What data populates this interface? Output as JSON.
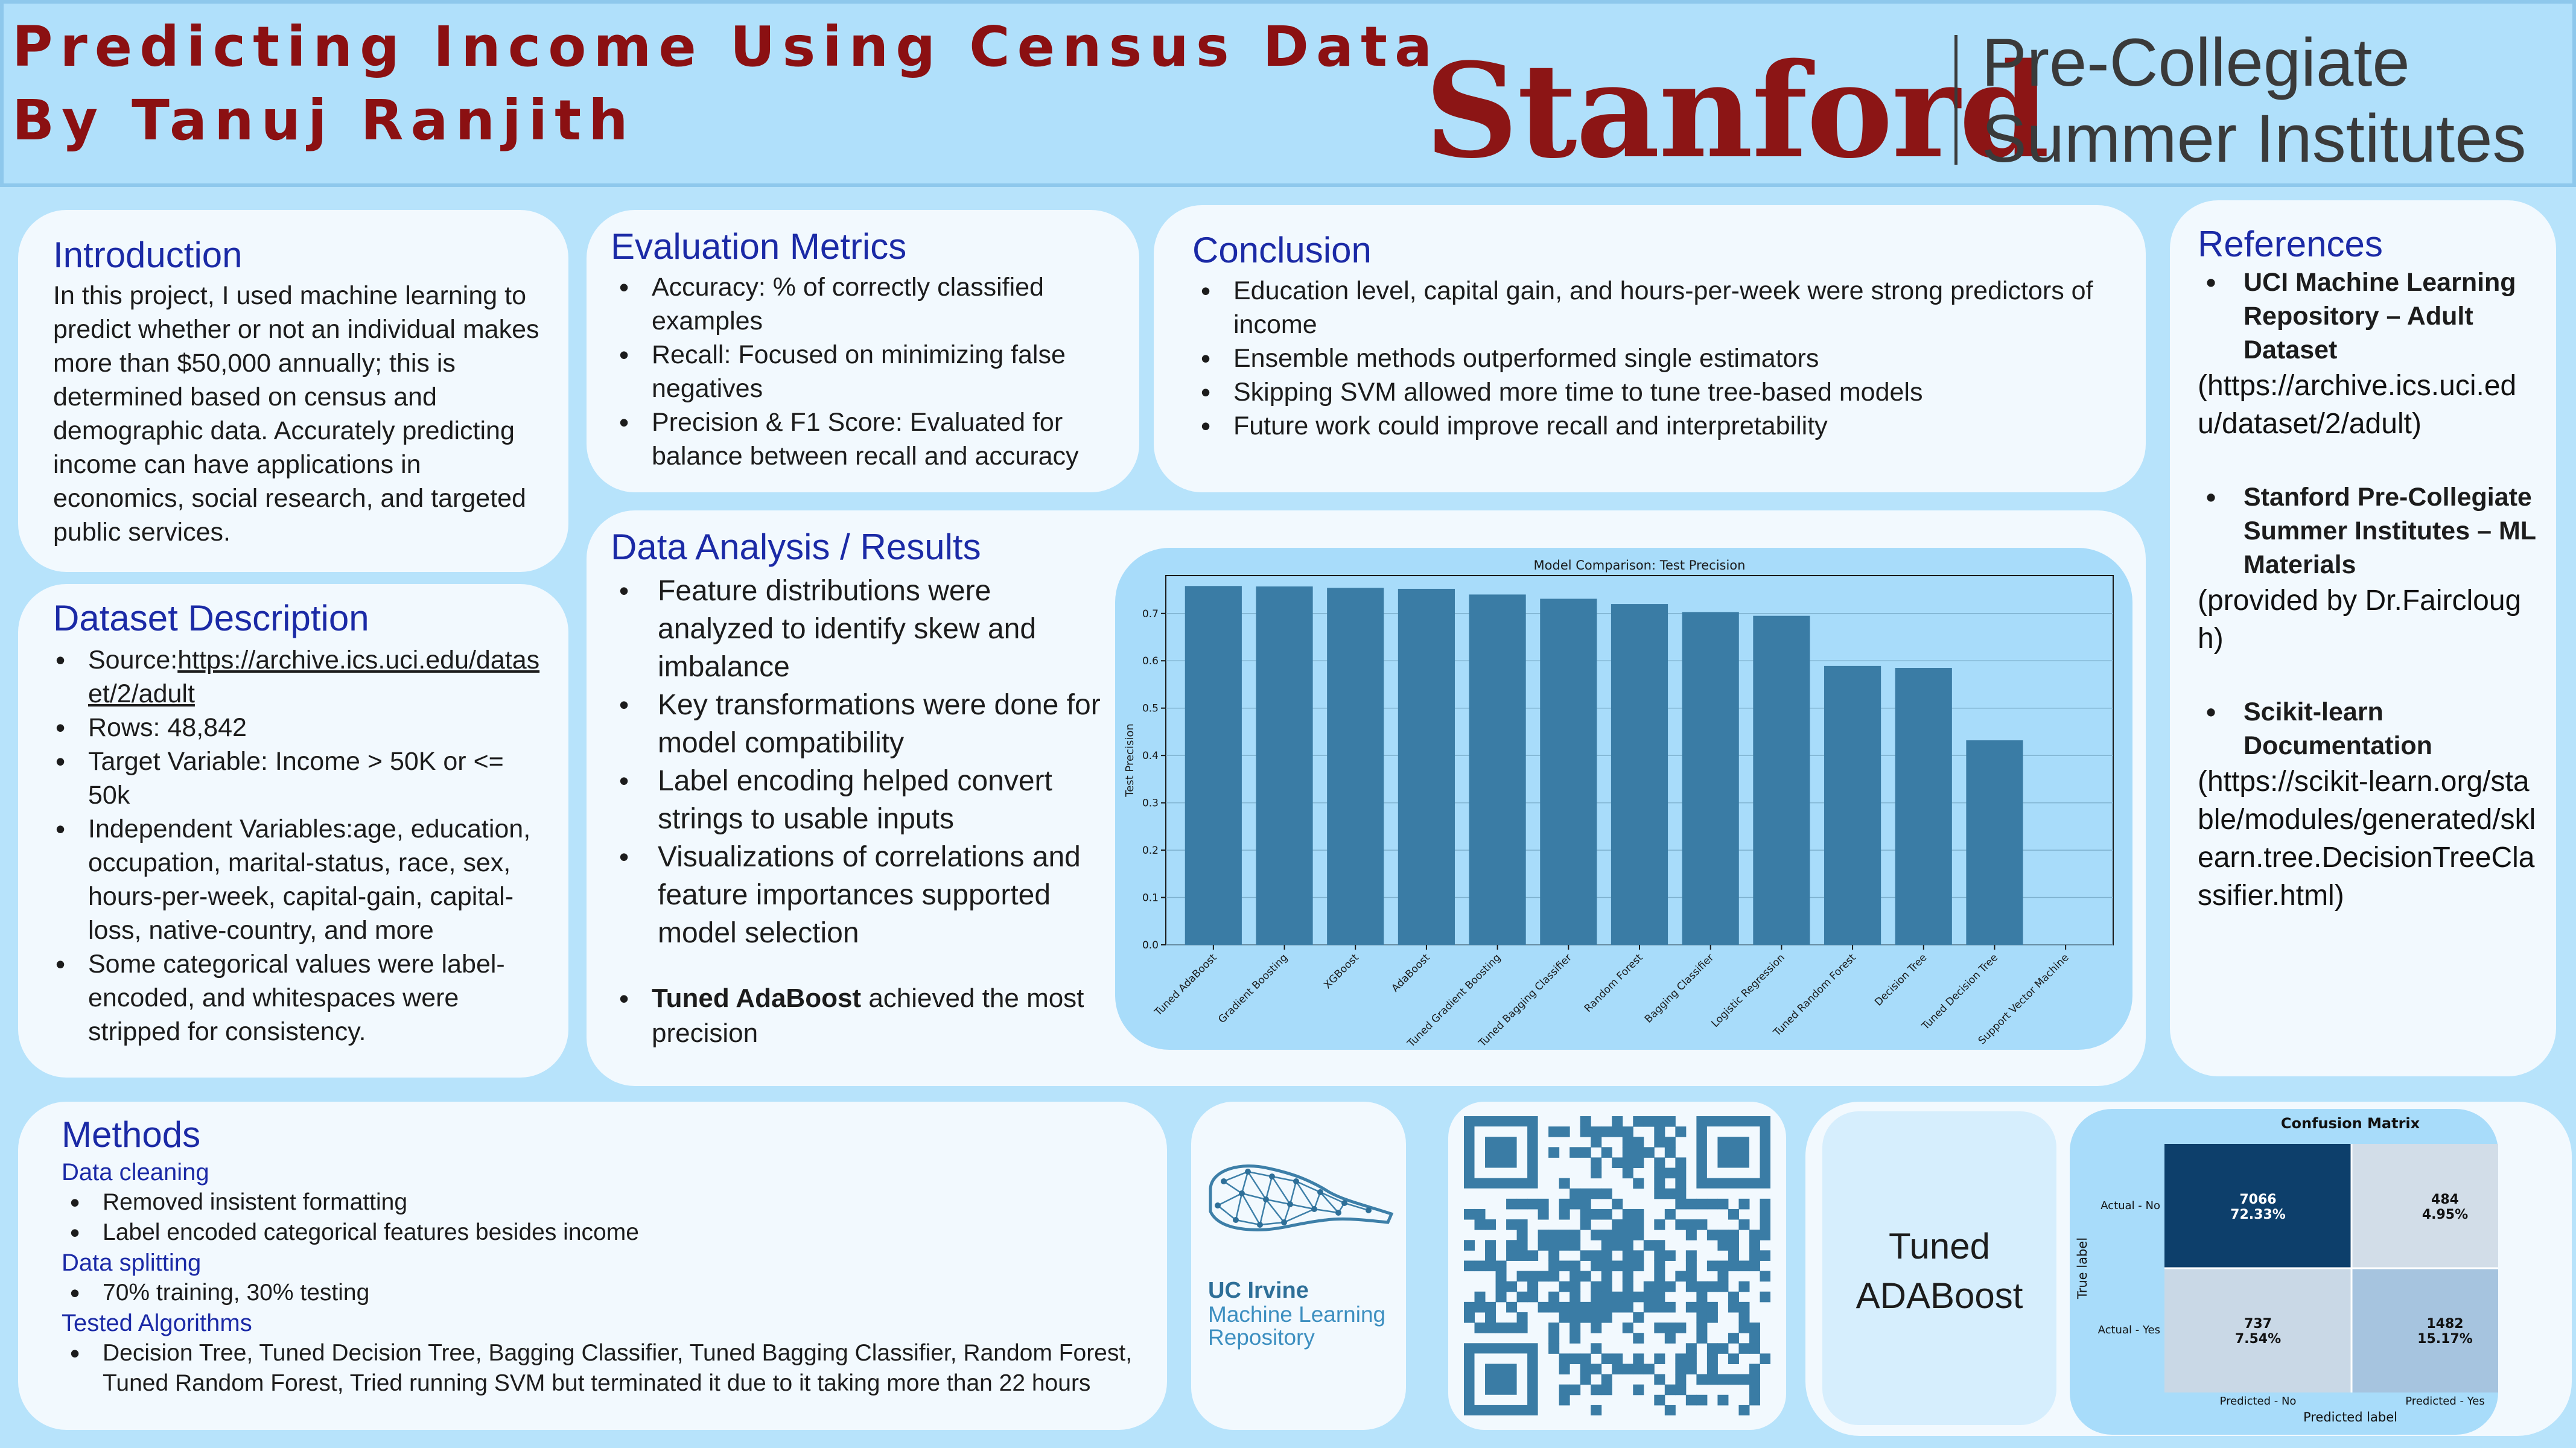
{
  "header": {
    "title_line1": "Predicting Income Using Census Data",
    "title_line2": "By Tanuj Ranjith",
    "logo_word": "Stanford",
    "logo_sub1": "Pre-Collegiate",
    "logo_sub2": "Summer Institutes"
  },
  "introduction": {
    "heading": "Introduction",
    "text": "In this project, I used machine learning to predict whether or not an individual makes more than $50,000 annually; this is determined based on census and demographic data. Accurately predicting income can have applications in economics, social research, and targeted public services."
  },
  "dataset": {
    "heading": "Dataset Description",
    "source_label": "Source:",
    "source_link": "https://archive.ics.uci.edu/dataset/2/adult",
    "rows": "Rows: 48,842",
    "target": "Target Variable: Income > 50K or <= 50k",
    "independent": "Independent Variables:age, education, occupation, marital-status, race, sex, hours-per-week, capital-gain, capital-loss, native-country, and more",
    "encoding": "Some categorical values were label-encoded, and whitespaces were stripped for consistency."
  },
  "evaluation": {
    "heading": "Evaluation Metrics",
    "items": [
      "Accuracy: % of correctly classified examples",
      "Recall: Focused on minimizing false negatives",
      "Precision & F1 Score: Evaluated for balance between recall and accuracy"
    ]
  },
  "conclusion": {
    "heading": "Conclusion",
    "items": [
      "Education level, capital gain, and hours-per-week were strong predictors of income",
      "Ensemble methods outperformed single estimators",
      "Skipping SVM allowed more time to tune tree-based models",
      "Future work could improve recall and interpretability"
    ]
  },
  "results": {
    "heading": "Data Analysis / Results",
    "items": [
      "Feature distributions were analyzed to identify skew and imbalance",
      "Key transformations were done for model compatibility",
      "Label encoding helped convert strings to usable inputs",
      "Visualizations of correlations and feature importances supported model selection"
    ],
    "highlight_bold": "Tuned AdaBoost",
    "highlight_rest": " achieved the most precision"
  },
  "chart_data": {
    "type": "bar",
    "title": "Model Comparison: Test Precision",
    "xlabel": "",
    "ylabel": "Test Precision",
    "ylim": [
      0,
      0.78
    ],
    "yticks": [
      "0.0",
      "0.1",
      "0.2",
      "0.3",
      "0.4",
      "0.5",
      "0.6",
      "0.7"
    ],
    "grid": true,
    "bar_color": "#3a7ca5",
    "categories": [
      "Tuned AdaBoost",
      "Gradient Boosting",
      "XGBoost",
      "AdaBoost",
      "Tuned Gradient Boosting",
      "Tuned Bagging Classifier",
      "Random Forest",
      "Bagging Classifier",
      "Logistic Regression",
      "Tuned Random Forest",
      "Decision Tree",
      "Tuned Decision Tree",
      "Support Vector Machine"
    ],
    "values": [
      0.758,
      0.757,
      0.754,
      0.752,
      0.74,
      0.731,
      0.72,
      0.703,
      0.695,
      0.589,
      0.585,
      0.432,
      0.0
    ]
  },
  "references": {
    "heading": "References",
    "ref1_title": "UCI Machine Learning Repository – Adult Dataset",
    "ref1_text": "(https://archive.ics.uci.edu/dataset/2/adult)",
    "ref2_title": "Stanford Pre-Collegiate Summer Institutes – ML Materials",
    "ref2_text": "(provided by Dr.Fairclough)",
    "ref3_title": "Scikit-learn Documentation",
    "ref3_text": "(https://scikit-learn.org/stable/modules/generated/sklearn.tree.DecisionTreeClassifier.html)"
  },
  "methods": {
    "heading": "Methods",
    "cleaning_heading": "Data cleaning",
    "cleaning_items": [
      "Removed insistent formatting",
      "Label encoded categorical features besides income"
    ],
    "splitting_heading": "Data splitting",
    "splitting_items": [
      "70% training, 30% testing"
    ],
    "algorithms_heading": "Tested Algorithms",
    "algorithms_items": [
      "Decision Tree, Tuned Decision Tree, Bagging Classifier, Tuned Bagging Classifier, Random Forest, Tuned Random Forest, Tried running SVM but terminated it due to it taking more than 22 hours"
    ]
  },
  "uci_logo": {
    "line1": "UC Irvine",
    "line2": "Machine Learning",
    "line3": "Repository"
  },
  "model_label": {
    "line1": "Tuned",
    "line2": "ADABoost"
  },
  "confusion_matrix": {
    "title": "Confusion Matrix",
    "ylabel": "True label",
    "xlabel": "Predicted label",
    "row_labels": [
      "Actual - No",
      "Actual - Yes"
    ],
    "col_labels": [
      "Predicted - No",
      "Predicted - Yes"
    ],
    "cells": [
      [
        {
          "count": "7066",
          "pct": "72.33%"
        },
        {
          "count": "484",
          "pct": "4.95%"
        }
      ],
      [
        {
          "count": "737",
          "pct": "7.54%"
        },
        {
          "count": "1482",
          "pct": "15.17%"
        }
      ]
    ]
  }
}
